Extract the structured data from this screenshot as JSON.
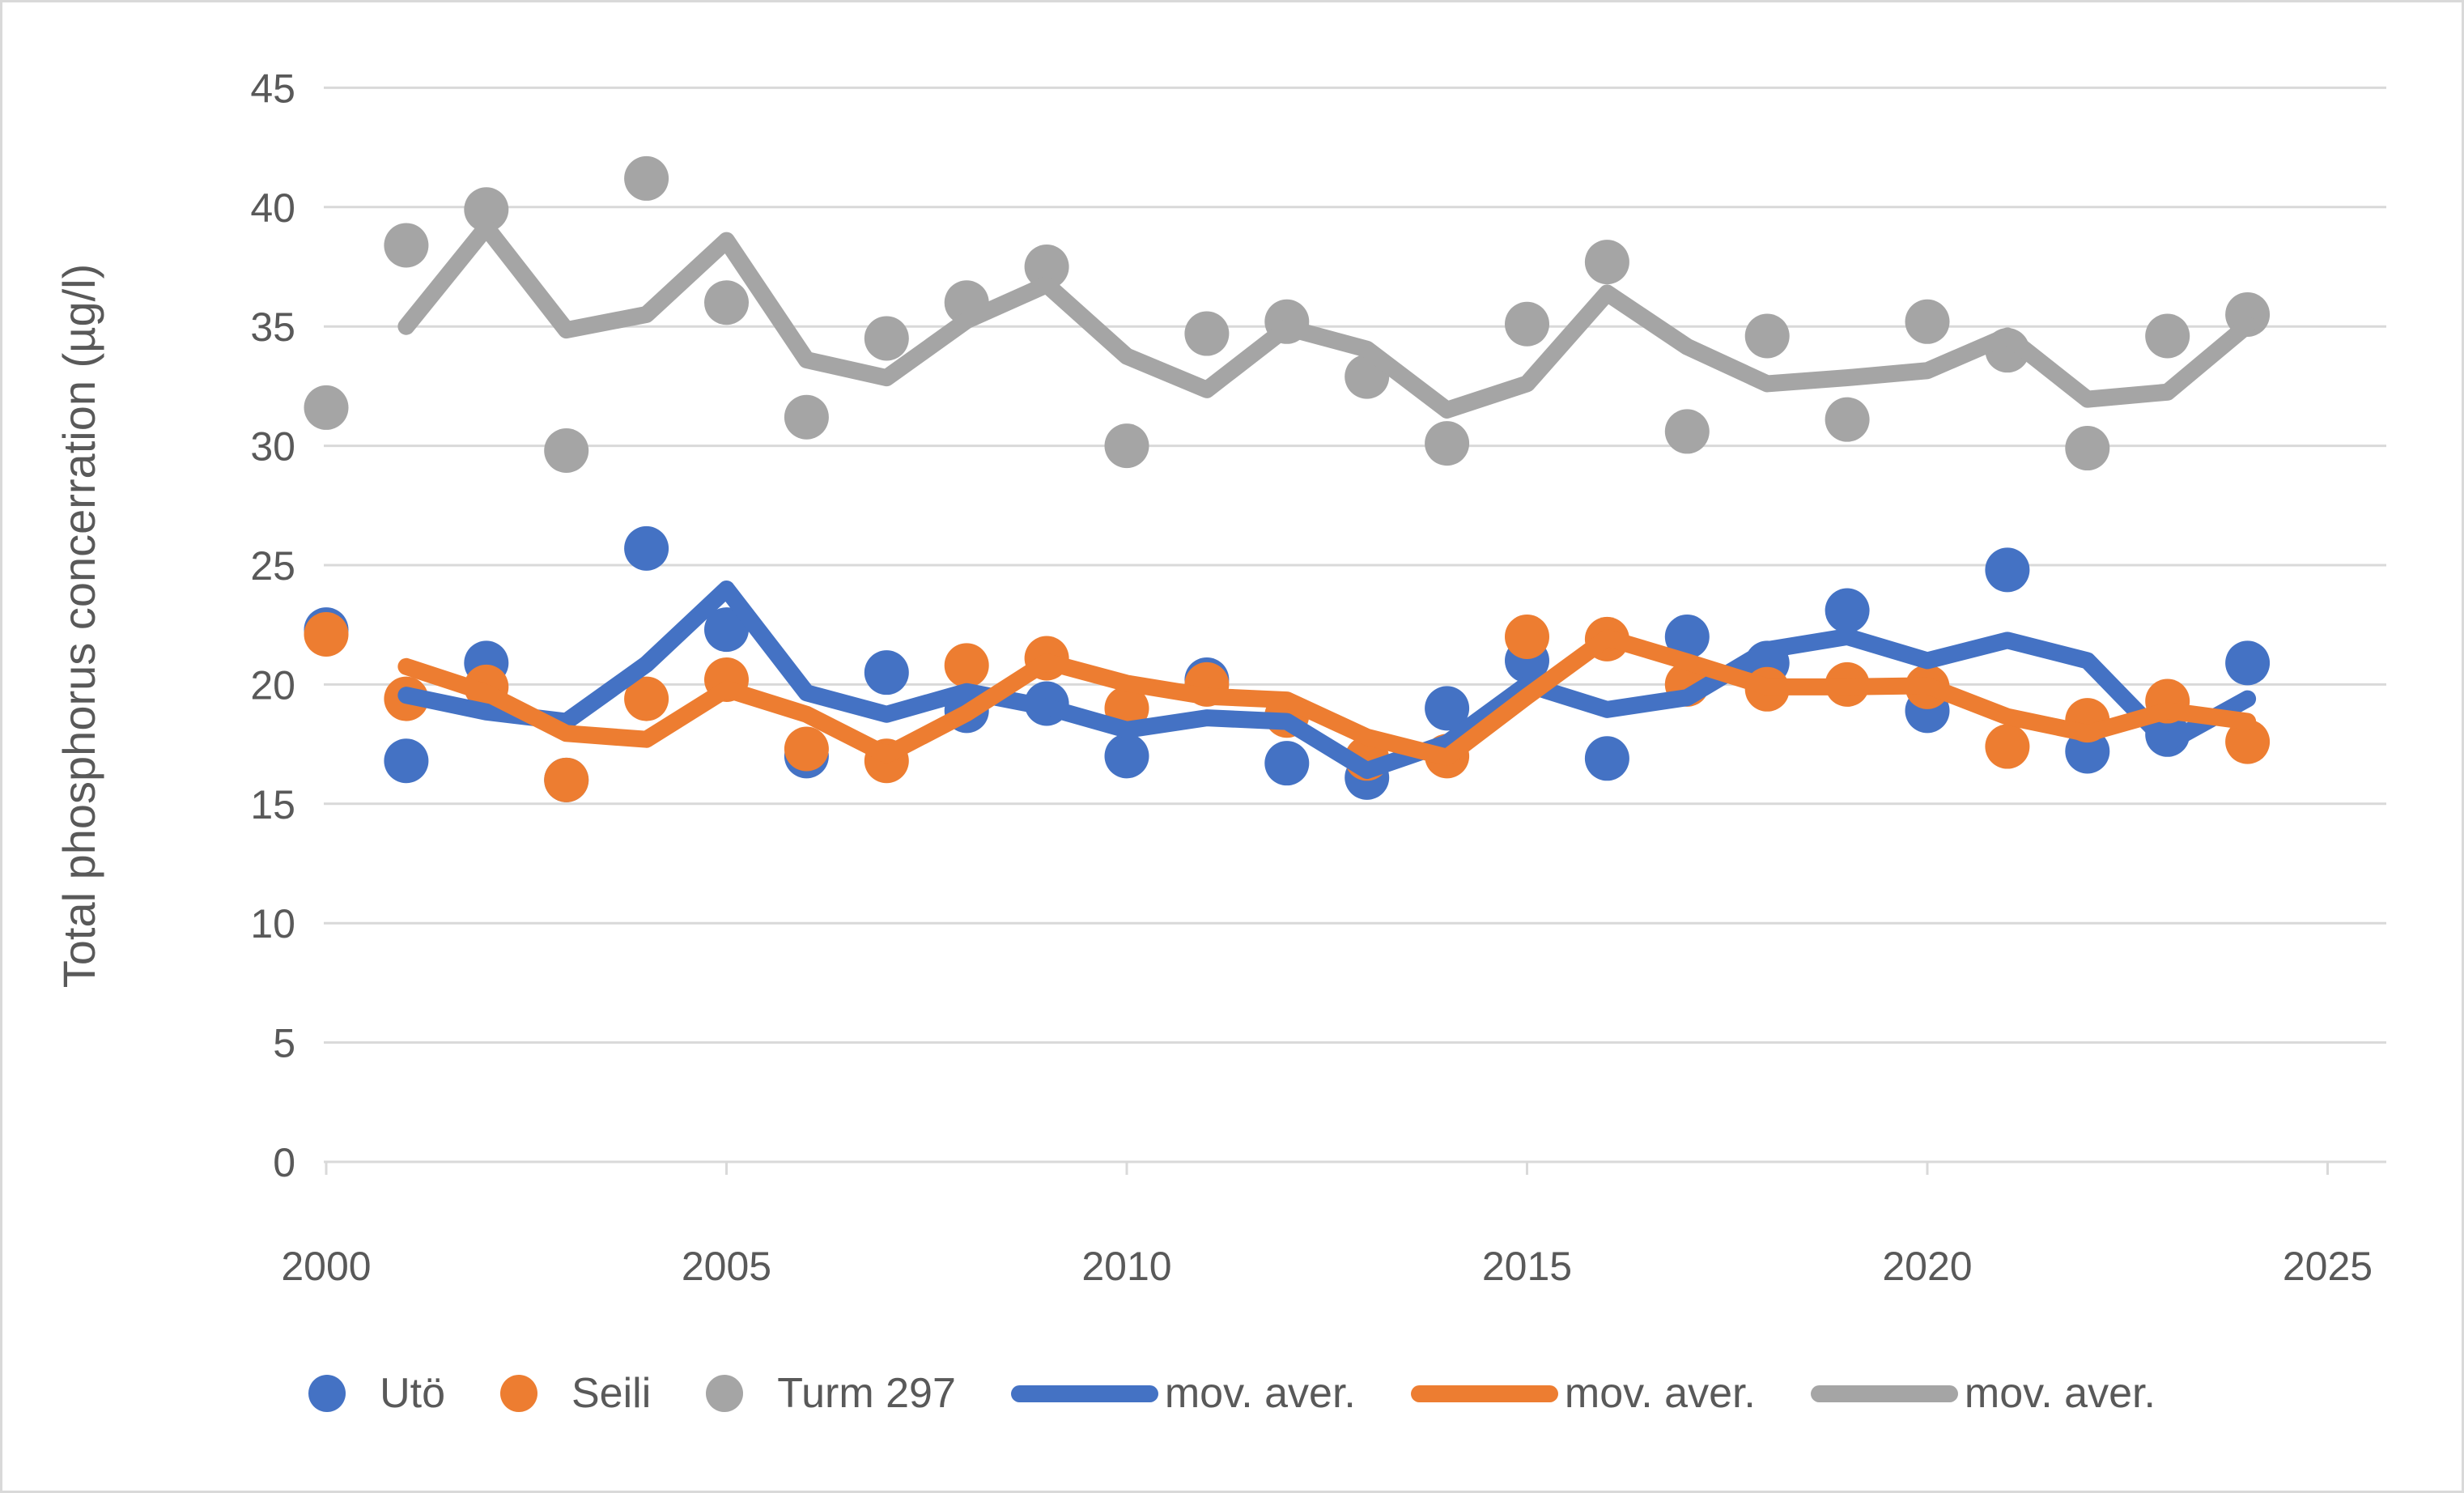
{
  "chart_data": {
    "type": "scatter",
    "title": "",
    "xlabel": "",
    "ylabel": "Total phosphorus concerration (µg/l)",
    "ylim": [
      0,
      45
    ],
    "xlim": [
      2000,
      2025
    ],
    "grid": "horizontal",
    "legend_position": "bottom",
    "yticks": [
      0,
      5,
      10,
      15,
      20,
      25,
      30,
      35,
      40,
      45
    ],
    "xticks": [
      2000,
      2005,
      2010,
      2015,
      2020,
      2025
    ],
    "x": [
      2000,
      2001,
      2002,
      2003,
      2004,
      2005,
      2006,
      2007,
      2008,
      2009,
      2010,
      2011,
      2012,
      2013,
      2014,
      2015,
      2016,
      2017,
      2018,
      2019,
      2020,
      2021,
      2022,
      2023,
      2024
    ],
    "series": [
      {
        "name": "Utö",
        "color": "#4472C4",
        "marker": "circle",
        "values": [
          22.3,
          16.8,
          20.9,
          16.0,
          25.7,
          22.3,
          17.0,
          20.5,
          18.9,
          19.2,
          17.0,
          20.2,
          16.7,
          16.1,
          19.0,
          21.0,
          16.9,
          22.0,
          20.9,
          23.1,
          18.9,
          24.8,
          17.2,
          17.9,
          20.9
        ]
      },
      {
        "name": "Seili",
        "color": "#ED7D31",
        "marker": "circle",
        "values": [
          22.1,
          19.4,
          19.9,
          16.0,
          19.4,
          20.2,
          17.3,
          16.8,
          20.8,
          21.1,
          19.0,
          20.0,
          18.7,
          16.9,
          17.0,
          22.0,
          21.9,
          20.0,
          19.8,
          20.0,
          19.9,
          17.4,
          18.5,
          19.3,
          17.6
        ]
      },
      {
        "name": "Turm 297",
        "color": "#A5A5A5",
        "marker": "circle",
        "values": [
          31.6,
          38.4,
          39.9,
          29.8,
          41.2,
          36.0,
          31.2,
          34.5,
          36.0,
          37.5,
          30.0,
          34.7,
          35.2,
          32.9,
          30.1,
          35.1,
          37.7,
          30.6,
          34.6,
          31.1,
          35.2,
          34.0,
          29.9,
          34.6,
          35.5
        ]
      }
    ],
    "moving_averages": [
      {
        "name": "mov. aver.",
        "source": "Utö",
        "color": "#4472C4",
        "window": 2
      },
      {
        "name": "mov. aver.",
        "source": "Seili",
        "color": "#ED7D31",
        "window": 2
      },
      {
        "name": "mov. aver.",
        "source": "Turm 297",
        "color": "#A5A5A5",
        "window": 2
      }
    ]
  },
  "legend": {
    "items": [
      {
        "label": "Utö",
        "marker": "dot",
        "color": "#4472C4"
      },
      {
        "label": "Seili",
        "marker": "dot",
        "color": "#ED7D31"
      },
      {
        "label": "Turm 297",
        "marker": "dot",
        "color": "#A5A5A5"
      },
      {
        "label": "mov. aver.",
        "marker": "line",
        "color": "#4472C4"
      },
      {
        "label": "mov. aver.",
        "marker": "line",
        "color": "#ED7D31"
      },
      {
        "label": "mov. aver.",
        "marker": "line",
        "color": "#A5A5A5"
      }
    ]
  },
  "colors": {
    "blue": "#4472C4",
    "orange": "#ED7D31",
    "gray": "#A5A5A5",
    "gridline": "#D9D9D9",
    "axis_text": "#595959",
    "border": "#D9D9D9",
    "background": "#FFFFFF"
  }
}
